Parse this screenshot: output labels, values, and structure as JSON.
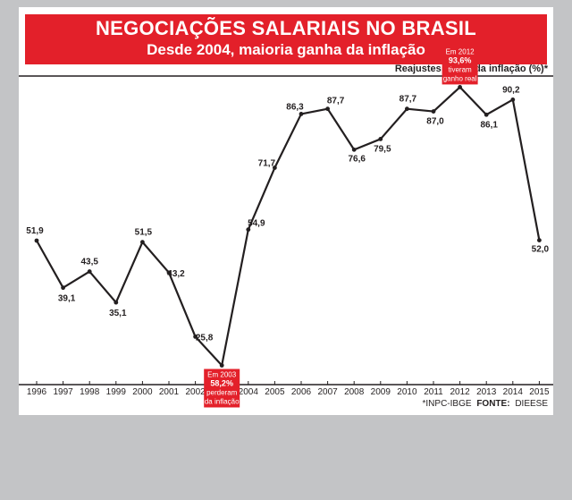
{
  "header": {
    "title": "NEGOCIAÇÕES SALARIAIS NO BRASIL",
    "subtitle": "Desde 2004, maioria ganha da inflação"
  },
  "colors": {
    "accent": "#e3202a",
    "line": "#231f20",
    "background": "#c3c4c6"
  },
  "chart_data": {
    "type": "line",
    "ylabel": "Reajustes acima da inflação (%)*",
    "x": [
      "1996",
      "1997",
      "1998",
      "1999",
      "2000",
      "2001",
      "2002",
      "2003",
      "2004",
      "2005",
      "2006",
      "2007",
      "2008",
      "2009",
      "2010",
      "2011",
      "2012",
      "2013",
      "2014",
      "2015"
    ],
    "values": [
      51.9,
      39.1,
      43.5,
      35.1,
      51.5,
      43.2,
      25.8,
      18.0,
      54.9,
      71.7,
      86.3,
      87.7,
      76.6,
      79.5,
      87.7,
      87.0,
      93.6,
      86.1,
      90.2,
      52.0
    ],
    "labels": [
      "51,9",
      "39,1",
      "43,5",
      "35,1",
      "51,5",
      "43,2",
      "25,8",
      "",
      "54,9",
      "71,7",
      "86,3",
      "87,7",
      "76,6",
      "79,5",
      "87,7",
      "87,0",
      "",
      "86,1",
      "90,2",
      "52,0"
    ],
    "grid": false,
    "annotations": [
      {
        "x": "2003",
        "lines": [
          "Em 2003",
          "58,2%",
          "perderam",
          "da inflação"
        ]
      },
      {
        "x": "2012",
        "lines": [
          "Em 2012",
          "93,6%",
          "tiveram",
          "ganho real"
        ]
      }
    ],
    "source": "*INPC-IBGE",
    "source_label": "FONTE:",
    "source_name": "DIEESE"
  }
}
